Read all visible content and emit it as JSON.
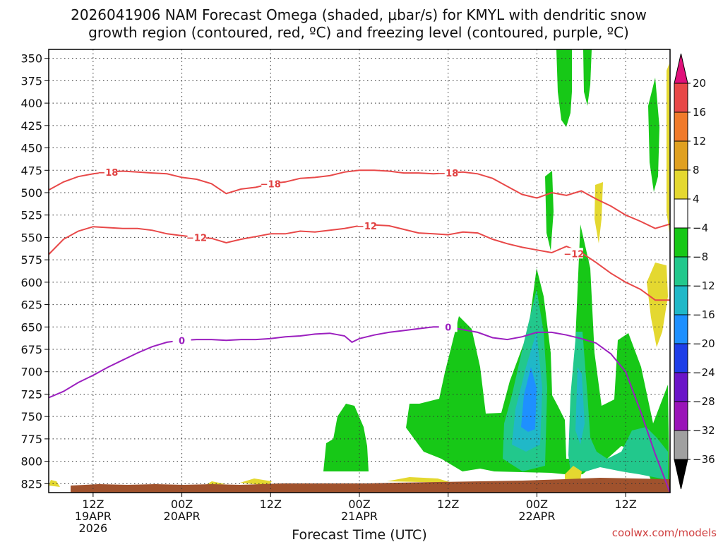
{
  "title_line1": "2026041906 NAM Forecast Omega (shaded, μbar/s) for KMYL with dendritic snow",
  "title_line2": "growth region (contoured, red, ºC) and freezing level (contoured, purple, ºC)",
  "xlabel": "Forecast Time (UTC)",
  "credit": "coolwx.com/models",
  "chart_data": {
    "type": "heatmap",
    "x_units": "forecast hours from 2026-04-19 06Z",
    "xlim": [
      0,
      84
    ],
    "y_tick_labels": [
      "350",
      "375",
      "400",
      "425",
      "450",
      "475",
      "500",
      "525",
      "550",
      "575",
      "600",
      "625",
      "650",
      "675",
      "700",
      "725",
      "750",
      "775",
      "800",
      "825"
    ],
    "y_ticks": [
      350,
      375,
      400,
      425,
      450,
      475,
      500,
      525,
      550,
      575,
      600,
      625,
      650,
      675,
      700,
      725,
      750,
      775,
      800,
      825
    ],
    "ylim": [
      340,
      835
    ],
    "y_axis_inverted": true,
    "grid": true,
    "x_ticks": [
      {
        "x": 6,
        "line1": "12Z",
        "line2": "19APR",
        "line3": "2026"
      },
      {
        "x": 18,
        "line1": "00Z",
        "line2": "20APR",
        "line3": ""
      },
      {
        "x": 30,
        "line1": "12Z",
        "line2": "",
        "line3": ""
      },
      {
        "x": 42,
        "line1": "00Z",
        "line2": "21APR",
        "line3": ""
      },
      {
        "x": 54,
        "line1": "12Z",
        "line2": "",
        "line3": ""
      },
      {
        "x": 66,
        "line1": "00Z",
        "line2": "22APR",
        "line3": ""
      },
      {
        "x": 78,
        "line1": "12Z",
        "line2": "",
        "line3": ""
      }
    ],
    "colorbar": {
      "labels": [
        "20",
        "16",
        "12",
        "8",
        "4",
        "−4",
        "−8",
        "−12",
        "−16",
        "−20",
        "−24",
        "−28",
        "−32",
        "−36"
      ],
      "bins": [
        {
          "lo": 16,
          "hi": 20,
          "color": "#e84848"
        },
        {
          "lo": 12,
          "hi": 16,
          "color": "#f07a2a"
        },
        {
          "lo": 8,
          "hi": 12,
          "color": "#e0a020"
        },
        {
          "lo": 4,
          "hi": 8,
          "color": "#e4d830"
        },
        {
          "lo": -4,
          "hi": 4,
          "color": "#ffffff"
        },
        {
          "lo": -8,
          "hi": -4,
          "color": "#17c817"
        },
        {
          "lo": -12,
          "hi": -8,
          "color": "#22c88c"
        },
        {
          "lo": -16,
          "hi": -12,
          "color": "#20b8c8"
        },
        {
          "lo": -20,
          "hi": -16,
          "color": "#1e90ff"
        },
        {
          "lo": -24,
          "hi": -20,
          "color": "#1e3ee8"
        },
        {
          "lo": -28,
          "hi": -24,
          "color": "#6a14c8"
        },
        {
          "lo": -32,
          "hi": -28,
          "color": "#9a14b8"
        },
        {
          "lo": -36,
          "hi": -32,
          "color": "#a0a0a0"
        }
      ],
      "top_arrow_color": "#e0107a",
      "bottom_arrow_color": "#000000"
    },
    "contours": [
      {
        "value": -18,
        "label": "−18",
        "color": "#e84848",
        "points": [
          [
            0,
            497
          ],
          [
            2,
            488
          ],
          [
            4,
            482
          ],
          [
            6,
            479
          ],
          [
            8,
            477
          ],
          [
            10,
            476
          ],
          [
            12,
            477
          ],
          [
            14,
            478
          ],
          [
            16,
            479
          ],
          [
            18,
            483
          ],
          [
            20,
            485
          ],
          [
            22,
            490
          ],
          [
            24,
            501
          ],
          [
            26,
            496
          ],
          [
            28,
            494
          ],
          [
            30,
            490
          ],
          [
            32,
            488
          ],
          [
            34,
            484
          ],
          [
            36,
            483
          ],
          [
            38,
            481
          ],
          [
            40,
            477
          ],
          [
            42,
            475
          ],
          [
            44,
            475
          ],
          [
            46,
            476
          ],
          [
            48,
            478
          ],
          [
            50,
            478
          ],
          [
            52,
            479
          ],
          [
            54,
            478
          ],
          [
            56,
            477
          ],
          [
            58,
            479
          ],
          [
            60,
            484
          ],
          [
            62,
            493
          ],
          [
            64,
            502
          ],
          [
            66,
            506
          ],
          [
            68,
            500
          ],
          [
            70,
            503
          ],
          [
            72,
            498
          ],
          [
            74,
            507
          ],
          [
            76,
            515
          ],
          [
            78,
            525
          ],
          [
            80,
            532
          ],
          [
            82,
            540
          ],
          [
            84,
            535
          ]
        ],
        "labels_at": [
          [
            8,
            477
          ],
          [
            30,
            490
          ],
          [
            54,
            478
          ]
        ]
      },
      {
        "value": -12,
        "label": "−12",
        "color": "#e84848",
        "points": [
          [
            0,
            569
          ],
          [
            2,
            552
          ],
          [
            4,
            543
          ],
          [
            6,
            538
          ],
          [
            8,
            539
          ],
          [
            10,
            540
          ],
          [
            12,
            540
          ],
          [
            14,
            542
          ],
          [
            16,
            546
          ],
          [
            18,
            548
          ],
          [
            20,
            550
          ],
          [
            22,
            551
          ],
          [
            24,
            556
          ],
          [
            26,
            552
          ],
          [
            28,
            549
          ],
          [
            30,
            546
          ],
          [
            32,
            546
          ],
          [
            34,
            543
          ],
          [
            36,
            544
          ],
          [
            38,
            542
          ],
          [
            40,
            540
          ],
          [
            42,
            537
          ],
          [
            44,
            536
          ],
          [
            46,
            537
          ],
          [
            48,
            541
          ],
          [
            50,
            545
          ],
          [
            52,
            546
          ],
          [
            54,
            547
          ],
          [
            56,
            544
          ],
          [
            58,
            545
          ],
          [
            60,
            552
          ],
          [
            62,
            557
          ],
          [
            64,
            561
          ],
          [
            66,
            564
          ],
          [
            68,
            567
          ],
          [
            70,
            560
          ],
          [
            72,
            567
          ],
          [
            74,
            578
          ],
          [
            76,
            590
          ],
          [
            78,
            600
          ],
          [
            80,
            608
          ],
          [
            82,
            620
          ],
          [
            84,
            620
          ]
        ],
        "labels_at": [
          [
            20,
            550
          ],
          [
            43,
            537
          ],
          [
            71,
            568
          ]
        ]
      },
      {
        "value": 0,
        "label": "0",
        "color": "#9b1fbf",
        "points": [
          [
            0,
            729
          ],
          [
            2,
            722
          ],
          [
            4,
            712
          ],
          [
            6,
            704
          ],
          [
            8,
            695
          ],
          [
            10,
            687
          ],
          [
            12,
            679
          ],
          [
            14,
            672
          ],
          [
            16,
            667
          ],
          [
            18,
            665
          ],
          [
            20,
            664
          ],
          [
            22,
            664
          ],
          [
            24,
            665
          ],
          [
            26,
            664
          ],
          [
            28,
            664
          ],
          [
            30,
            663
          ],
          [
            32,
            661
          ],
          [
            34,
            660
          ],
          [
            36,
            658
          ],
          [
            38,
            657
          ],
          [
            40,
            660
          ],
          [
            41,
            667
          ],
          [
            42,
            663
          ],
          [
            44,
            659
          ],
          [
            46,
            656
          ],
          [
            48,
            654
          ],
          [
            50,
            652
          ],
          [
            52,
            650
          ],
          [
            54,
            650
          ],
          [
            56,
            653
          ],
          [
            58,
            656
          ],
          [
            60,
            662
          ],
          [
            62,
            664
          ],
          [
            64,
            661
          ],
          [
            66,
            656
          ],
          [
            68,
            656
          ],
          [
            70,
            659
          ],
          [
            72,
            663
          ],
          [
            74,
            668
          ],
          [
            76,
            680
          ],
          [
            78,
            700
          ],
          [
            80,
            744
          ],
          [
            82,
            792
          ],
          [
            84,
            835
          ]
        ],
        "labels_at": [
          [
            18,
            665
          ],
          [
            54,
            650
          ]
        ]
      }
    ]
  }
}
